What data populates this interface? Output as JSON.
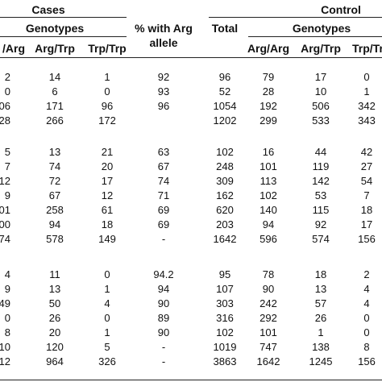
{
  "header": {
    "cases": "Cases",
    "control": "Control",
    "genotypes_cases": "Genotypes",
    "genotypes_control": "Genotypes",
    "pct_line1": "% with Arg",
    "pct_line2": "allele",
    "total": "Total",
    "cols": [
      "/Arg",
      "Arg/Trp",
      "Trp/Trp",
      "Arg/Arg",
      "Arg/Trp",
      "Trp/Trp"
    ]
  },
  "rows": [
    [
      "2",
      "14",
      "1",
      "92",
      "96",
      "79",
      "17",
      "0"
    ],
    [
      "0",
      "6",
      "0",
      "93",
      "52",
      "28",
      "10",
      "1"
    ],
    [
      "06",
      "171",
      "96",
      "96",
      "1054",
      "192",
      "506",
      "342"
    ],
    [
      "28",
      "266",
      "172",
      "",
      "1202",
      "299",
      "533",
      "343"
    ],
    [
      "5",
      "13",
      "21",
      "63",
      "102",
      "16",
      "44",
      "42"
    ],
    [
      "7",
      "74",
      "20",
      "67",
      "248",
      "101",
      "119",
      "27"
    ],
    [
      "12",
      "72",
      "17",
      "74",
      "309",
      "113",
      "142",
      "54"
    ],
    [
      "9",
      "67",
      "12",
      "71",
      "162",
      "102",
      "53",
      "7"
    ],
    [
      "01",
      "258",
      "61",
      "69",
      "620",
      "140",
      "115",
      "18"
    ],
    [
      "00",
      "94",
      "18",
      "69",
      "203",
      "94",
      "92",
      "17"
    ],
    [
      "74",
      "578",
      "149",
      "-",
      "1642",
      "596",
      "574",
      "156"
    ],
    [
      "4",
      "11",
      "0",
      "94.2",
      "95",
      "78",
      "18",
      "2"
    ],
    [
      "9",
      "13",
      "1",
      "94",
      "107",
      "90",
      "13",
      "4"
    ],
    [
      "49",
      "50",
      "4",
      "90",
      "303",
      "242",
      "57",
      "4"
    ],
    [
      "0",
      "26",
      "0",
      "89",
      "316",
      "292",
      "26",
      "0"
    ],
    [
      "8",
      "20",
      "1",
      "90",
      "102",
      "101",
      "1",
      "0"
    ],
    [
      "10",
      "120",
      "5",
      "-",
      "1019",
      "747",
      "138",
      "8"
    ],
    [
      "12",
      "964",
      "326",
      "-",
      "3863",
      "1642",
      "1245",
      "156"
    ]
  ]
}
